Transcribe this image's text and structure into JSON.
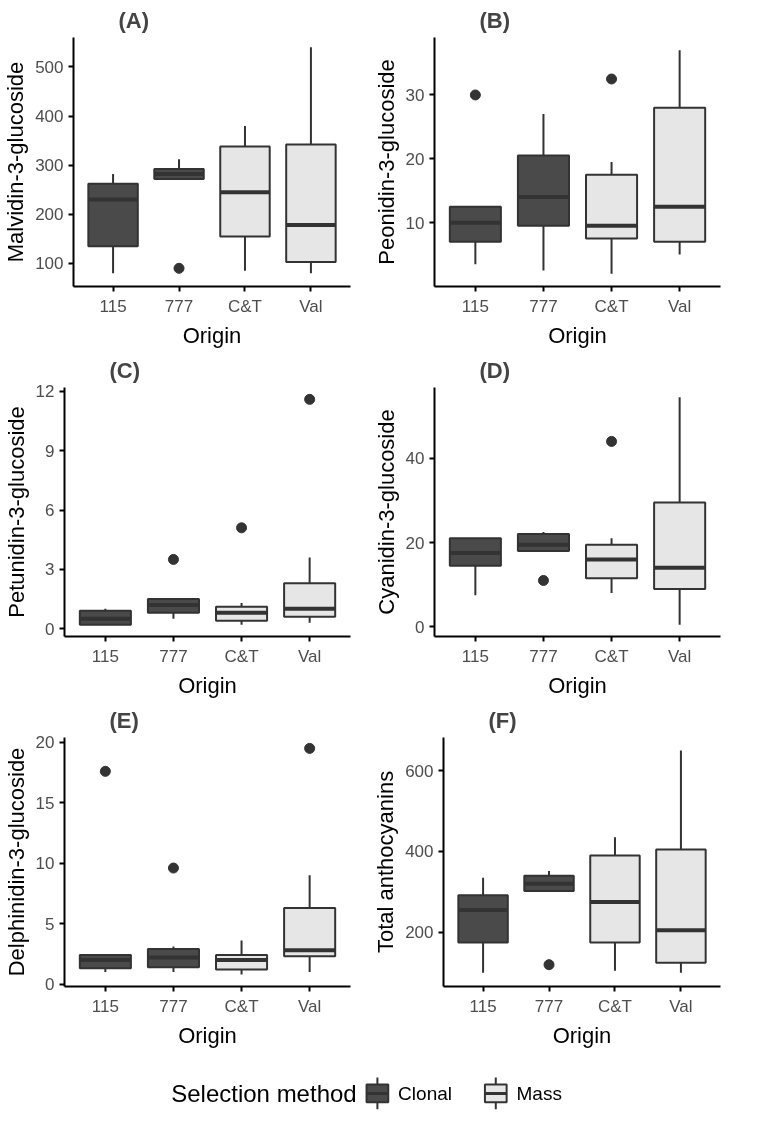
{
  "chart_data": [
    {
      "type": "box",
      "title": "(A)",
      "xlabel": "Origin",
      "ylabel": "Malvidin-3-glucoside",
      "categories": [
        "115",
        "777",
        "C&T",
        "Val"
      ],
      "ylim": [
        53,
        560
      ],
      "yticks": [
        100,
        200,
        300,
        400,
        500
      ],
      "grid": false,
      "series": [
        {
          "color": "#4a4a4a",
          "boxes": [
            {
              "low": 80,
              "q1": 135,
              "median": 230,
              "q3": 262,
              "high": 282
            },
            {
              "low": 272,
              "q1": 272,
              "median": 282,
              "q3": 292,
              "high": 312,
              "outliers": [
                90
              ]
            },
            null,
            null
          ]
        },
        {
          "color": "#e6e6e6",
          "boxes": [
            null,
            null,
            {
              "low": 85,
              "q1": 155,
              "median": 245,
              "q3": 338,
              "high": 380
            },
            {
              "low": 80,
              "q1": 103,
              "median": 178,
              "q3": 342,
              "high": 540
            }
          ]
        }
      ]
    },
    {
      "type": "box",
      "title": "(B)",
      "xlabel": "Origin",
      "ylabel": "Peonidin-3-glucoside",
      "categories": [
        "115",
        "777",
        "C&T",
        "Val"
      ],
      "ylim": [
        0,
        39
      ],
      "yticks": [
        10,
        20,
        30
      ],
      "grid": false,
      "series": [
        {
          "color": "#4a4a4a",
          "boxes": [
            {
              "low": 3.5,
              "q1": 7,
              "median": 10,
              "q3": 12.5,
              "high": 12.5,
              "outliers": [
                30
              ]
            },
            {
              "low": 2.5,
              "q1": 9.5,
              "median": 14,
              "q3": 20.5,
              "high": 27
            },
            null,
            null
          ]
        },
        {
          "color": "#e6e6e6",
          "boxes": [
            null,
            null,
            {
              "low": 2,
              "q1": 7.5,
              "median": 9.5,
              "q3": 17.5,
              "high": 19.5,
              "outliers": [
                32.5
              ]
            },
            {
              "low": 5,
              "q1": 7,
              "median": 12.5,
              "q3": 28,
              "high": 37
            }
          ]
        }
      ]
    },
    {
      "type": "box",
      "title": "(C)",
      "xlabel": "Origin",
      "ylabel": "Petunidin-3-glucoside",
      "categories": [
        "115",
        "777",
        "C&T",
        "Val"
      ],
      "ylim": [
        -0.4,
        12.2
      ],
      "yticks": [
        0,
        3,
        6,
        9,
        12
      ],
      "grid": false,
      "series": [
        {
          "color": "#4a4a4a",
          "boxes": [
            {
              "low": 0.2,
              "q1": 0.2,
              "median": 0.5,
              "q3": 0.9,
              "high": 1.0
            },
            {
              "low": 0.5,
              "q1": 0.8,
              "median": 1.2,
              "q3": 1.5,
              "high": 1.5,
              "outliers": [
                3.5
              ]
            },
            null,
            null
          ]
        },
        {
          "color": "#e6e6e6",
          "boxes": [
            null,
            null,
            {
              "low": 0.2,
              "q1": 0.4,
              "median": 0.8,
              "q3": 1.1,
              "high": 1.3,
              "outliers": [
                5.1
              ]
            },
            {
              "low": 0.3,
              "q1": 0.6,
              "median": 1.0,
              "q3": 2.3,
              "high": 3.6,
              "outliers": [
                11.6
              ]
            }
          ]
        }
      ]
    },
    {
      "type": "box",
      "title": "(D)",
      "xlabel": "Origin",
      "ylabel": "Cyanidin-3-glucoside",
      "categories": [
        "115",
        "777",
        "C&T",
        "Val"
      ],
      "ylim": [
        -2.3,
        56.8
      ],
      "yticks": [
        0,
        20,
        40
      ],
      "grid": false,
      "series": [
        {
          "color": "#4a4a4a",
          "boxes": [
            {
              "low": 7.5,
              "q1": 14.5,
              "median": 17.5,
              "q3": 21,
              "high": 21
            },
            {
              "low": 18,
              "q1": 18,
              "median": 19.5,
              "q3": 22,
              "high": 22.5,
              "outliers": [
                11
              ]
            },
            null,
            null
          ]
        },
        {
          "color": "#e6e6e6",
          "boxes": [
            null,
            null,
            {
              "low": 8,
              "q1": 11.5,
              "median": 16,
              "q3": 19.5,
              "high": 21,
              "outliers": [
                44
              ]
            },
            {
              "low": 0.5,
              "q1": 9,
              "median": 14,
              "q3": 29.5,
              "high": 54.5
            }
          ]
        }
      ]
    },
    {
      "type": "box",
      "title": "(E)",
      "xlabel": "Origin",
      "ylabel": "Delphinidin-3-glucoside",
      "categories": [
        "115",
        "777",
        "C&T",
        "Val"
      ],
      "ylim": [
        -0.2,
        20.4
      ],
      "yticks": [
        0,
        5,
        10,
        15,
        20
      ],
      "grid": false,
      "series": [
        {
          "color": "#4a4a4a",
          "boxes": [
            {
              "low": 1,
              "q1": 1.3,
              "median": 2,
              "q3": 2.4,
              "high": 2.4,
              "outliers": [
                17.6
              ]
            },
            {
              "low": 1,
              "q1": 1.4,
              "median": 2.2,
              "q3": 2.9,
              "high": 3.1,
              "outliers": [
                9.6
              ]
            },
            null,
            null
          ]
        },
        {
          "color": "#e6e6e6",
          "boxes": [
            null,
            null,
            {
              "low": 0.8,
              "q1": 1.2,
              "median": 2,
              "q3": 2.4,
              "high": 3.6
            },
            {
              "low": 1,
              "q1": 2.3,
              "median": 2.8,
              "q3": 6.3,
              "high": 9,
              "outliers": [
                19.5
              ]
            }
          ]
        }
      ]
    },
    {
      "type": "box",
      "title": "(F)",
      "xlabel": "Origin",
      "ylabel": "Total anthocyanins",
      "categories": [
        "115",
        "777",
        "C&T",
        "Val"
      ],
      "ylim": [
        66,
        682
      ],
      "yticks": [
        200,
        400,
        600
      ],
      "grid": false,
      "legend": "bottom",
      "legend_title": "Selection method",
      "series": [
        {
          "name": "Clonal",
          "color": "#4a4a4a",
          "boxes": [
            {
              "low": 100,
              "q1": 175,
              "median": 255,
              "q3": 292,
              "high": 335
            },
            {
              "low": 300,
              "q1": 302,
              "median": 320,
              "q3": 340,
              "high": 352,
              "outliers": [
                120
              ]
            },
            null,
            null
          ]
        },
        {
          "name": "Mass",
          "color": "#e6e6e6",
          "boxes": [
            null,
            null,
            {
              "low": 105,
              "q1": 175,
              "median": 275,
              "q3": 390,
              "high": 435
            },
            {
              "low": 100,
              "q1": 125,
              "median": 205,
              "q3": 405,
              "high": 650
            }
          ]
        }
      ]
    }
  ]
}
